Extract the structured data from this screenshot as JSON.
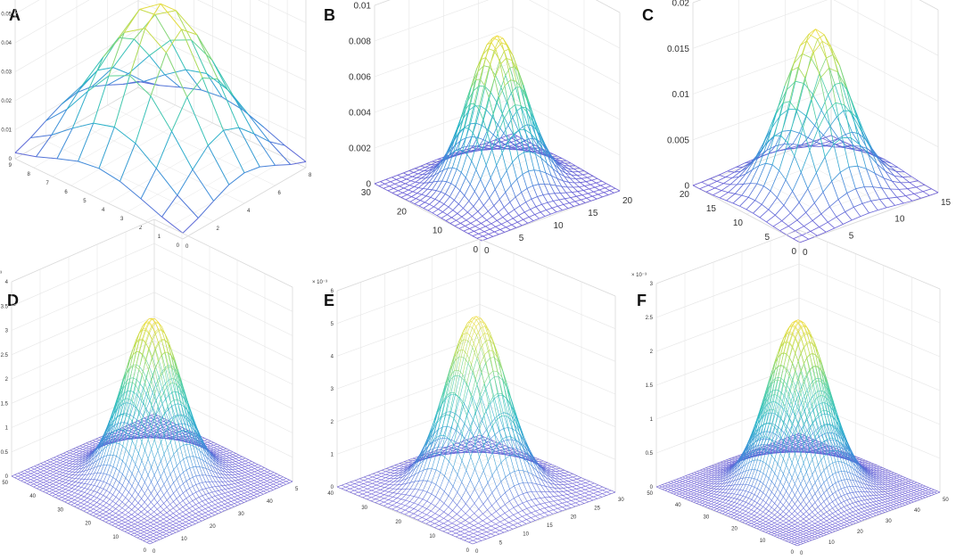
{
  "figure": {
    "background": "#ffffff",
    "box_color": "#d9d9d9",
    "grid_color": "#e6e6e6",
    "tick_color": "#333333"
  },
  "colormap": [
    "#6b5bd6",
    "#3d8fd9",
    "#2ab7c7",
    "#4fd0a0",
    "#b5dc52",
    "#f2dc3a"
  ],
  "chart_data": [
    {
      "panel": "A",
      "type": "surface",
      "title": "",
      "function": "gaussian",
      "grid_n": 9,
      "sigma": 2.2,
      "x_range": [
        1,
        9
      ],
      "y_range": [
        1,
        9
      ],
      "z_range": [
        0,
        0.06
      ],
      "peak": 0.055,
      "x_ticks": [
        "0",
        "2",
        "4",
        "6",
        "8"
      ],
      "y_ticks": [
        "0",
        "1",
        "2",
        "3",
        "4",
        "5",
        "6",
        "7",
        "8",
        "9"
      ],
      "z_ticks": [
        "0",
        "0.01",
        "0.02",
        "0.03",
        "0.04",
        "0.05",
        "0.06"
      ],
      "exponent": "",
      "tick_font": 6
    },
    {
      "panel": "B",
      "type": "surface",
      "title": "",
      "function": "gaussian",
      "grid_n": 25,
      "sigma": 4.0,
      "x_range": [
        0,
        25
      ],
      "y_range": [
        0,
        25
      ],
      "z_range": [
        0,
        0.01
      ],
      "peak": 0.0085,
      "x_ticks": [
        "0",
        "5",
        "10",
        "15",
        "20"
      ],
      "y_ticks": [
        "0",
        "10",
        "20",
        "30"
      ],
      "z_ticks": [
        "0",
        "0.002",
        "0.004",
        "0.006",
        "0.008",
        "0.01"
      ],
      "exponent": "",
      "tick_font": 10
    },
    {
      "panel": "C",
      "type": "surface",
      "title": "",
      "function": "gaussian",
      "grid_n": 17,
      "sigma": 3.0,
      "x_range": [
        0,
        17
      ],
      "y_range": [
        0,
        17
      ],
      "z_range": [
        0,
        0.02
      ],
      "peak": 0.0175,
      "x_ticks": [
        "0",
        "5",
        "10",
        "15"
      ],
      "y_ticks": [
        "0",
        "5",
        "10",
        "15",
        "20"
      ],
      "z_ticks": [
        "0",
        "0.005",
        "0.01",
        "0.015",
        "0.02"
      ],
      "exponent": "",
      "tick_font": 10
    },
    {
      "panel": "D",
      "type": "surface",
      "title": "",
      "function": "gaussian",
      "grid_n": 45,
      "sigma": 6.5,
      "x_range": [
        0,
        45
      ],
      "y_range": [
        0,
        45
      ],
      "z_range": [
        0,
        4
      ],
      "peak": 3.3,
      "x_ticks": [
        "0",
        "10",
        "20",
        "30",
        "40",
        "5"
      ],
      "y_ticks": [
        "0",
        "10",
        "20",
        "30",
        "40",
        "50"
      ],
      "z_ticks": [
        "0",
        "0.5",
        "1",
        "1.5",
        "2",
        "2.5",
        "3",
        "3.5",
        "4"
      ],
      "exponent": "× 10⁻³",
      "tick_font": 6
    },
    {
      "panel": "E",
      "type": "surface",
      "title": "",
      "function": "gaussian",
      "grid_n": 33,
      "sigma": 5.0,
      "x_range": [
        0,
        33
      ],
      "y_range": [
        0,
        33
      ],
      "z_range": [
        0,
        6
      ],
      "peak": 5.3,
      "x_ticks": [
        "0",
        "5",
        "10",
        "15",
        "20",
        "25",
        "30"
      ],
      "y_ticks": [
        "0",
        "10",
        "20",
        "30",
        "40"
      ],
      "z_ticks": [
        "0",
        "1",
        "2",
        "3",
        "4",
        "5",
        "6"
      ],
      "exponent": "× 10⁻³",
      "tick_font": 6
    },
    {
      "panel": "F",
      "type": "surface",
      "title": "",
      "function": "gaussian",
      "grid_n": 50,
      "sigma": 7.5,
      "x_range": [
        0,
        50
      ],
      "y_range": [
        0,
        50
      ],
      "z_range": [
        0,
        3
      ],
      "peak": 2.5,
      "x_ticks": [
        "0",
        "10",
        "20",
        "30",
        "40",
        "50"
      ],
      "y_ticks": [
        "0",
        "10",
        "20",
        "30",
        "40",
        "50"
      ],
      "z_ticks": [
        "0",
        "0.5",
        "1",
        "1.5",
        "2",
        "2.5",
        "3"
      ],
      "exponent": "× 10⁻³",
      "tick_font": 6
    }
  ]
}
